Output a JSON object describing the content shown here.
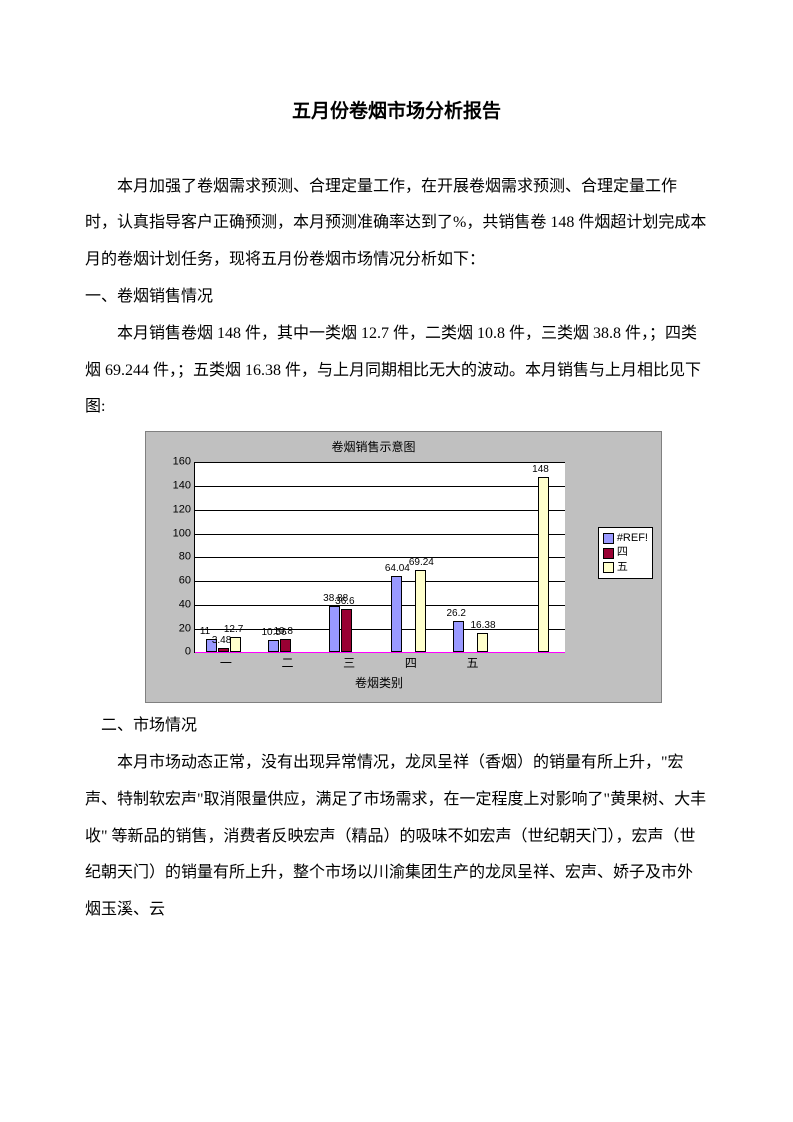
{
  "document": {
    "title": "五月份卷烟市场分析报告",
    "intro": "本月加强了卷烟需求预测、合理定量工作，在开展卷烟需求预测、合理定量工作时，认真指导客户正确预测，本月预测准确率达到了%，共销售卷 148 件烟超计划完成本月的卷烟计划任务，现将五月份卷烟市场情况分析如下：",
    "section1_heading": "一、卷烟销售情况",
    "section1_body": "本月销售卷烟 148 件，其中一类烟 12.7 件，二类烟 10.8 件，三类烟 38.8 件，；四类烟 69.244 件，；五类烟 16.38 件，与上月同期相比无大的波动。本月销售与上月相比见下图:",
    "section2_heading": "二、市场情况",
    "section2_body": "本月市场动态正常，没有出现异常情况，龙凤呈祥（香烟）的销量有所上升，\"宏声、特制软宏声\"取消限量供应，满足了市场需求，在一定程度上对影响了\"黄果树、大丰收\" 等新品的销售，消费者反映宏声（精品）的吸味不如宏声（世纪朝天门），宏声（世纪朝天门）的销量有所上升，整个市场以川渝集团生产的龙凤呈祥、宏声、娇子及市外烟玉溪、云"
  },
  "chart": {
    "type": "bar",
    "title": "卷烟销售示意图",
    "x_axis_title": "卷烟类别",
    "background_color": "#c0c0c0",
    "plot_background": "#ffffff",
    "grid_color": "#000000",
    "ref_line_color": "#ff00ff",
    "font_size": 11,
    "title_fontsize": 12,
    "ylim": [
      0,
      160
    ],
    "ytick_step": 20,
    "yticks": [
      0,
      20,
      40,
      60,
      80,
      100,
      120,
      140,
      160
    ],
    "categories": [
      "一",
      "二",
      "三",
      "四",
      "五",
      ""
    ],
    "series": [
      {
        "name": "#REF!",
        "color": "#9999ff",
        "values": [
          11,
          10.56,
          38.88,
          64.04,
          26.2,
          null
        ],
        "labels": [
          "11",
          "10.56",
          "38.88",
          "64.04",
          "26.2",
          ""
        ]
      },
      {
        "name": "四",
        "color": "#990033",
        "values": [
          3.48,
          10.8,
          36.6,
          null,
          null,
          null
        ],
        "labels": [
          "3.48",
          "10.8",
          "36.6",
          "",
          "",
          ""
        ]
      },
      {
        "name": "五",
        "color": "#ffffcc",
        "values": [
          12.7,
          null,
          null,
          69.24,
          16.38,
          148
        ],
        "labels": [
          "12.7",
          "",
          "",
          "69.24",
          "16.38",
          "148"
        ]
      }
    ],
    "legend": {
      "items": [
        "#REF!",
        "四",
        "五"
      ],
      "colors": [
        "#9999ff",
        "#990033",
        "#ffffcc"
      ]
    }
  }
}
